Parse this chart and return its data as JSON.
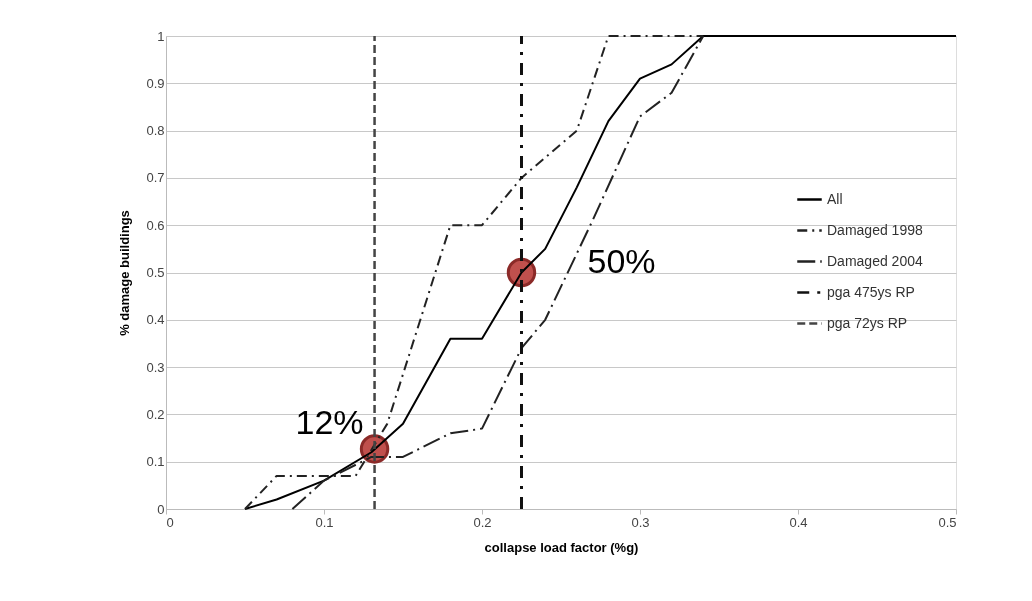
{
  "chart_data": {
    "type": "line",
    "xlabel": "collapse load factor (%g)",
    "ylabel": "% damage buildings",
    "xlim": [
      0,
      0.5
    ],
    "xticks": [
      0,
      0.1,
      0.2,
      0.3,
      0.4,
      0.5
    ],
    "ylim": [
      0,
      1
    ],
    "yticks": [
      0,
      0.1,
      0.2,
      0.3,
      0.4,
      0.5,
      0.6,
      0.7,
      0.8,
      0.9,
      1
    ],
    "grid": "y",
    "legend": "right",
    "marker": "none",
    "series": [
      {
        "name": "All",
        "color": "#000000",
        "line_style": "solid",
        "x": [
          0.05,
          0.07,
          0.1,
          0.13,
          0.15,
          0.18,
          0.2,
          0.225,
          0.24,
          0.26,
          0.28,
          0.3,
          0.32,
          0.34,
          0.5
        ],
        "values": [
          0,
          0.02,
          0.06,
          0.12,
          0.18,
          0.36,
          0.36,
          0.5,
          0.55,
          0.68,
          0.82,
          0.91,
          0.94,
          1,
          1
        ]
      },
      {
        "name": "Damaged 1998",
        "color": "#222222",
        "line_style": "dashdot",
        "x": [
          0.05,
          0.07,
          0.12,
          0.14,
          0.18,
          0.2,
          0.225,
          0.26,
          0.28,
          0.34
        ],
        "values": [
          0,
          0.07,
          0.07,
          0.18,
          0.6,
          0.6,
          0.7,
          0.8,
          1,
          1
        ]
      },
      {
        "name": "Damaged 2004",
        "color": "#222222",
        "line_style": "longdashdot",
        "x": [
          0.08,
          0.1,
          0.13,
          0.15,
          0.18,
          0.2,
          0.225,
          0.24,
          0.27,
          0.3,
          0.32,
          0.34
        ],
        "values": [
          0,
          0.06,
          0.11,
          0.11,
          0.16,
          0.17,
          0.34,
          0.4,
          0.61,
          0.83,
          0.88,
          1
        ]
      },
      {
        "name": "pga 475ys RP",
        "color": "#111111",
        "line_style": "heavydashdot",
        "x": [
          0.225,
          0.225
        ],
        "values": [
          0,
          1
        ]
      },
      {
        "name": "pga 72ys RP",
        "color": "#444444",
        "line_style": "dashed",
        "x": [
          0.132,
          0.132
        ],
        "values": [
          0,
          1
        ]
      },
      {
        "type": "scatter",
        "color": "#c0504d",
        "marker": "circle",
        "x": [
          0.132,
          0.225
        ],
        "values": [
          0.127,
          0.5
        ]
      }
    ],
    "annotations": [
      {
        "text": "12%",
        "x": 0.132,
        "y": 0.127
      },
      {
        "text": "50%",
        "x": 0.225,
        "y": 0.5
      }
    ]
  }
}
